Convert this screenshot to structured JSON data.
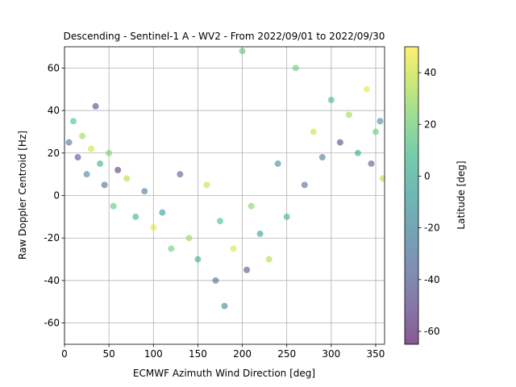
{
  "chart_data": {
    "type": "scatter",
    "title": "Descending - Sentinel-1 A - WV2 - From 2022/09/01 to 2022/09/30",
    "xlabel": "ECMWF Azimuth Wind Direction [deg]",
    "ylabel": "Raw Doppler Centroid [Hz]",
    "xlim": [
      0,
      360
    ],
    "ylim": [
      -70,
      70
    ],
    "xticks": [
      0,
      50,
      100,
      150,
      200,
      250,
      300,
      350
    ],
    "yticks": [
      -60,
      -40,
      -20,
      0,
      20,
      40,
      60
    ],
    "grid": true,
    "marker_alpha": 0.55,
    "colormap": "viridis",
    "colorbar": {
      "label": "Latitude [deg]",
      "range": [
        -65,
        50
      ],
      "ticks": [
        -60,
        -40,
        -20,
        0,
        20,
        40
      ]
    },
    "trend_description": "Approximately cosine-shaped dependence: Doppler values near +20 Hz at 0 and 360 deg, decreasing to about -15 Hz around 180-200 deg, with scatter of roughly +/-20 Hz.",
    "points": [
      {
        "x": 5,
        "y": 25,
        "lat": -30
      },
      {
        "x": 10,
        "y": 35,
        "lat": 10
      },
      {
        "x": 15,
        "y": 18,
        "lat": -45
      },
      {
        "x": 20,
        "y": 28,
        "lat": 30
      },
      {
        "x": 25,
        "y": 10,
        "lat": -20
      },
      {
        "x": 30,
        "y": 22,
        "lat": 40
      },
      {
        "x": 35,
        "y": 42,
        "lat": -50
      },
      {
        "x": 40,
        "y": 15,
        "lat": 0
      },
      {
        "x": 45,
        "y": 5,
        "lat": -35
      },
      {
        "x": 50,
        "y": 20,
        "lat": 25
      },
      {
        "x": 55,
        "y": -5,
        "lat": 15
      },
      {
        "x": 60,
        "y": 12,
        "lat": -55
      },
      {
        "x": 70,
        "y": 8,
        "lat": 35
      },
      {
        "x": 80,
        "y": -10,
        "lat": 5
      },
      {
        "x": 90,
        "y": 2,
        "lat": -25
      },
      {
        "x": 100,
        "y": -15,
        "lat": 45
      },
      {
        "x": 110,
        "y": -8,
        "lat": -10
      },
      {
        "x": 120,
        "y": -25,
        "lat": 20
      },
      {
        "x": 130,
        "y": 10,
        "lat": -40
      },
      {
        "x": 140,
        "y": -20,
        "lat": 30
      },
      {
        "x": 150,
        "y": -30,
        "lat": 0
      },
      {
        "x": 160,
        "y": 5,
        "lat": 38
      },
      {
        "x": 170,
        "y": -40,
        "lat": -30
      },
      {
        "x": 175,
        "y": -12,
        "lat": 10
      },
      {
        "x": 180,
        "y": -52,
        "lat": -20
      },
      {
        "x": 190,
        "y": -25,
        "lat": 42
      },
      {
        "x": 200,
        "y": 68,
        "lat": 15
      },
      {
        "x": 205,
        "y": -35,
        "lat": -45
      },
      {
        "x": 210,
        "y": -5,
        "lat": 25
      },
      {
        "x": 220,
        "y": -18,
        "lat": -5
      },
      {
        "x": 230,
        "y": -30,
        "lat": 35
      },
      {
        "x": 240,
        "y": 15,
        "lat": -15
      },
      {
        "x": 250,
        "y": -10,
        "lat": 5
      },
      {
        "x": 260,
        "y": 60,
        "lat": 20
      },
      {
        "x": 270,
        "y": 5,
        "lat": -35
      },
      {
        "x": 280,
        "y": 30,
        "lat": 40
      },
      {
        "x": 290,
        "y": 18,
        "lat": -25
      },
      {
        "x": 300,
        "y": 45,
        "lat": 10
      },
      {
        "x": 310,
        "y": 25,
        "lat": -50
      },
      {
        "x": 320,
        "y": 38,
        "lat": 30
      },
      {
        "x": 330,
        "y": 20,
        "lat": 0
      },
      {
        "x": 340,
        "y": 50,
        "lat": 45
      },
      {
        "x": 345,
        "y": 15,
        "lat": -40
      },
      {
        "x": 350,
        "y": 30,
        "lat": 20
      },
      {
        "x": 355,
        "y": 35,
        "lat": -15
      },
      {
        "x": 358,
        "y": 8,
        "lat": 35
      }
    ]
  }
}
